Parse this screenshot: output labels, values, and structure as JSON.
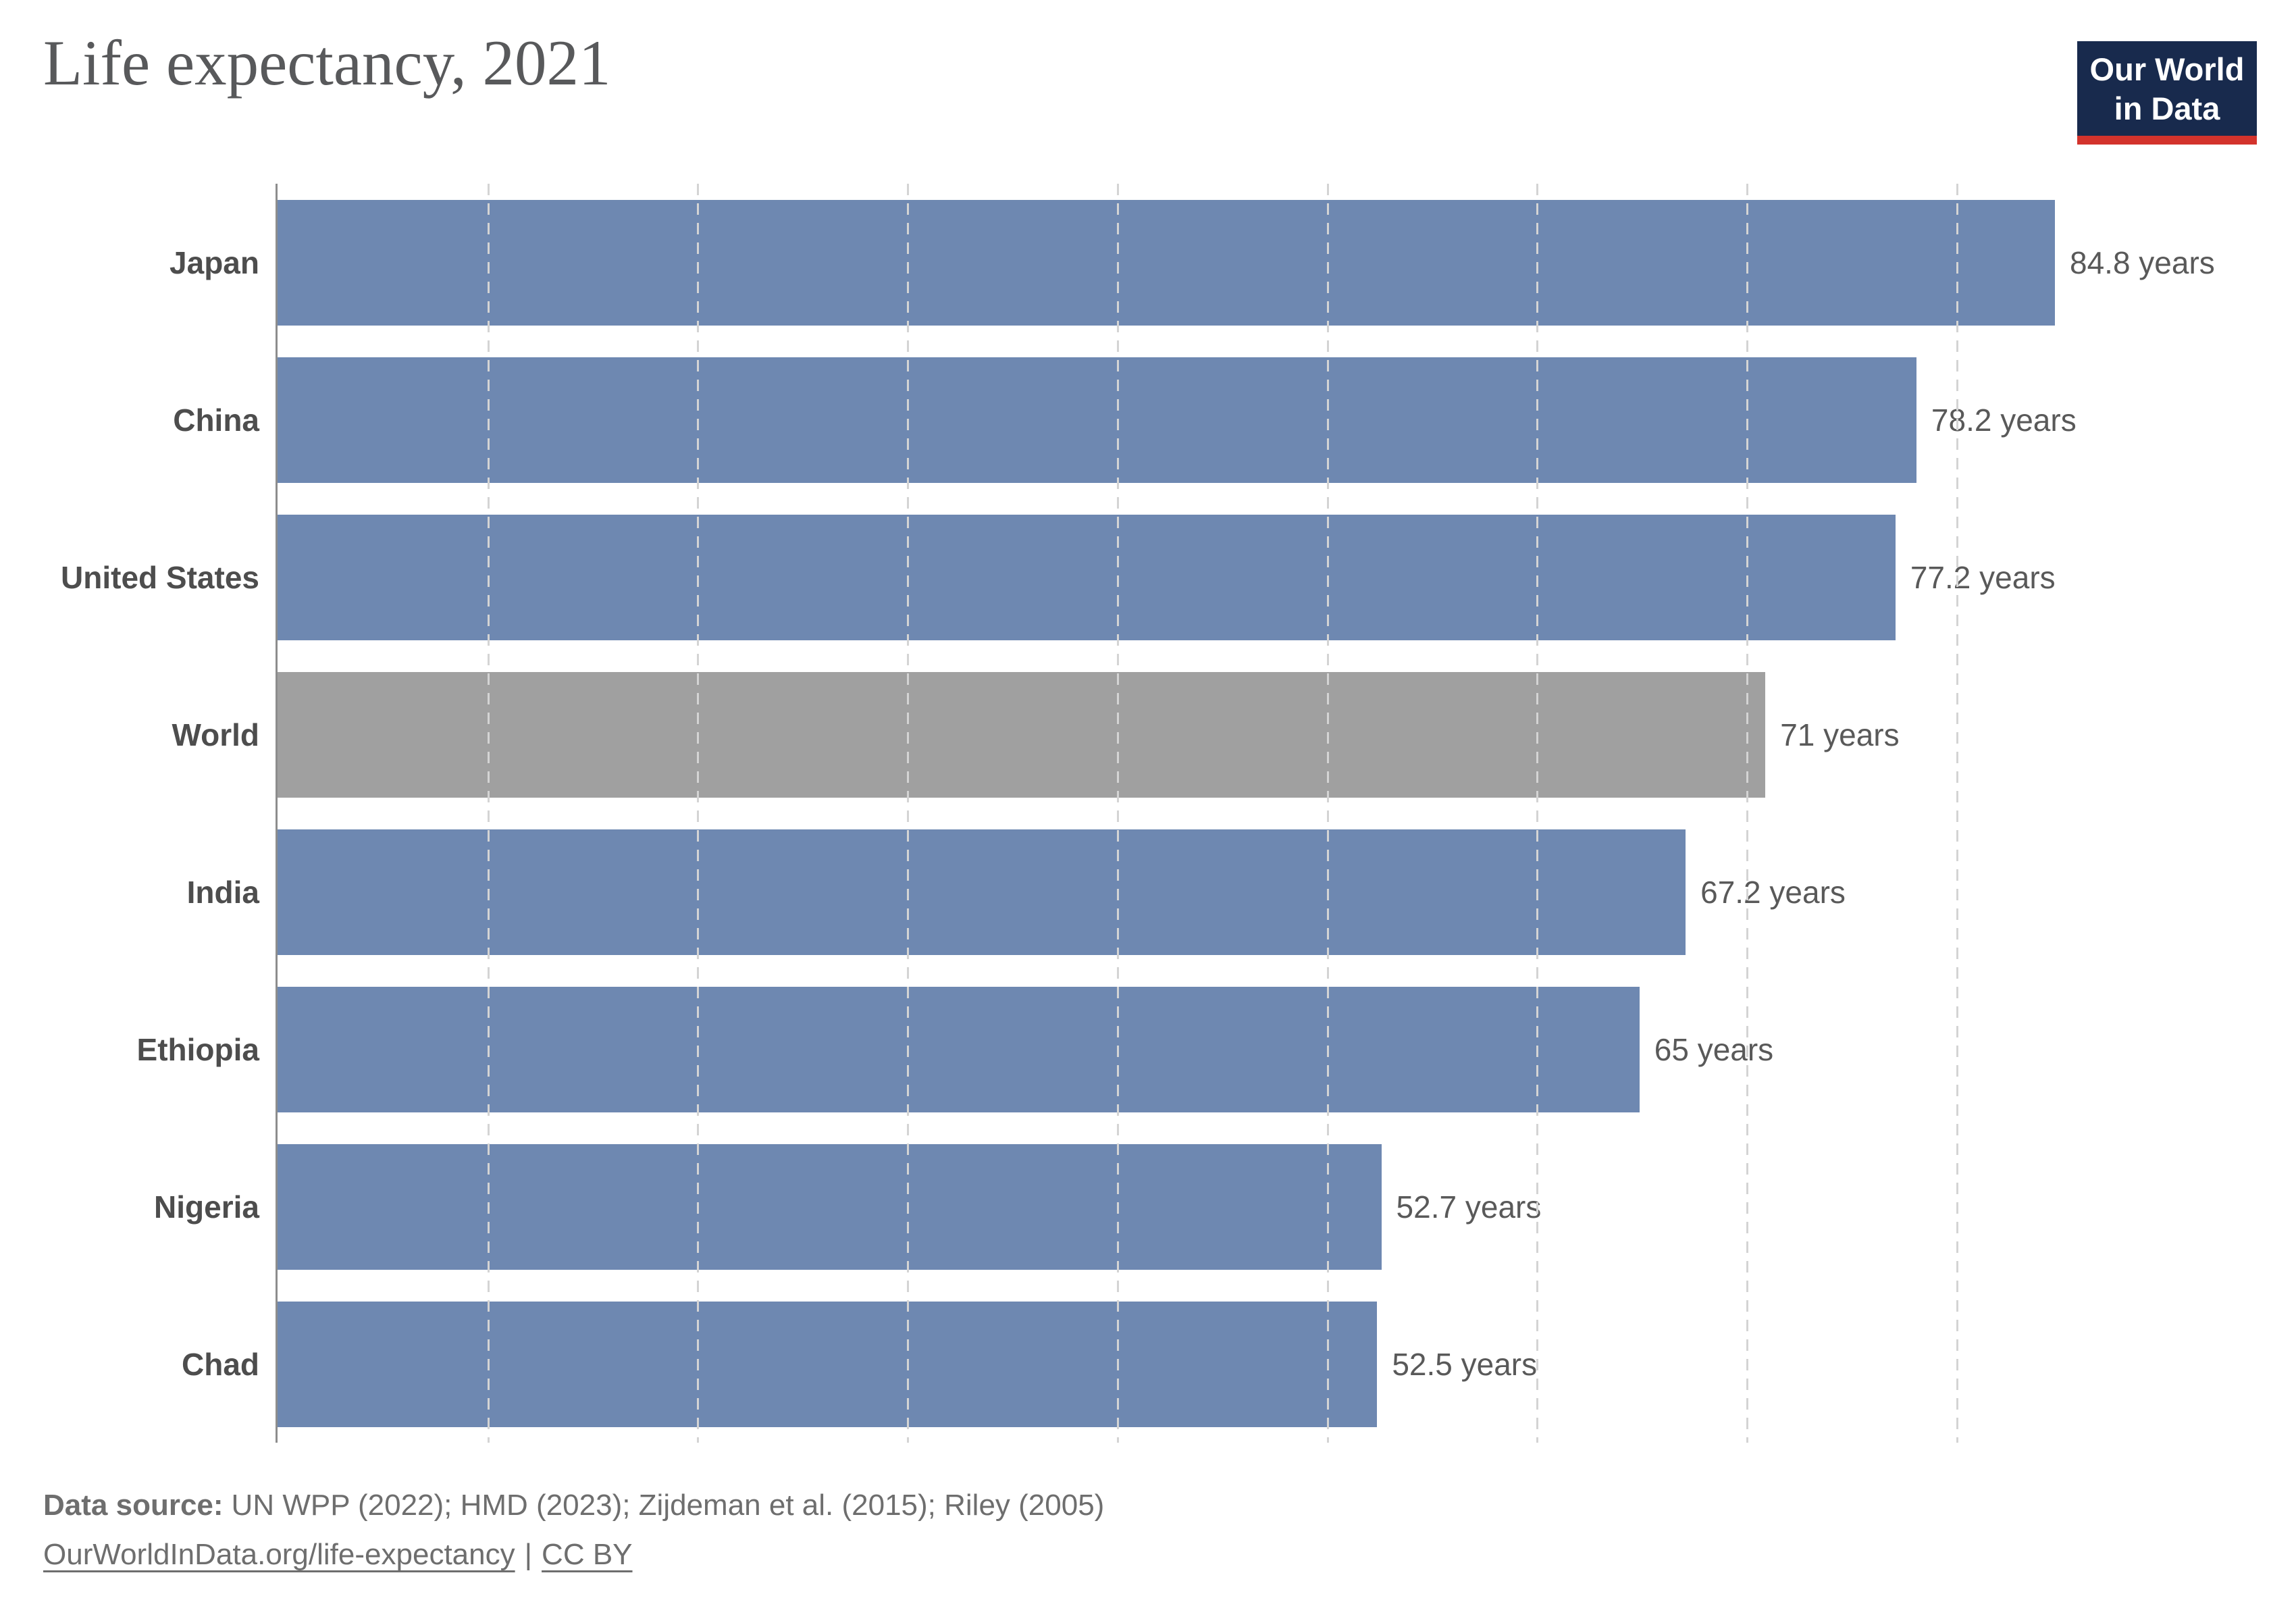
{
  "header": {
    "title": "Life expectancy, 2021"
  },
  "logo": {
    "line1": "Our World",
    "line2": "in Data",
    "background": "#182a4d",
    "accent_bar": "#d3332c"
  },
  "chart_data": {
    "type": "bar",
    "orientation": "horizontal",
    "title": "Life expectancy, 2021",
    "categories": [
      "Japan",
      "China",
      "United States",
      "World",
      "India",
      "Ethiopia",
      "Nigeria",
      "Chad"
    ],
    "values": [
      84.8,
      78.2,
      77.2,
      71,
      67.2,
      65,
      52.7,
      52.5
    ],
    "value_labels": [
      "84.8 years",
      "78.2 years",
      "77.2 years",
      "71 years",
      "67.2 years",
      "65 years",
      "52.7 years",
      "52.5 years"
    ],
    "unit": "years",
    "xlim": [
      0,
      84.8
    ],
    "gridline_step": 10,
    "grid": true,
    "legend": "none",
    "bar_colors": [
      "#6e88b1",
      "#6e88b1",
      "#6e88b1",
      "#a0a0a0",
      "#6e88b1",
      "#6e88b1",
      "#6e88b1",
      "#6e88b1"
    ]
  },
  "footer": {
    "source_label": "Data source:",
    "source_text": "UN WPP (2022); HMD (2023); Zijdeman et al. (2015); Riley (2005)",
    "link_url": "OurWorldInData.org/life-expectancy",
    "divider": "|",
    "license": "CC BY"
  },
  "colors": {
    "bar_blue": "#6e88b1",
    "bar_gray": "#a0a0a0",
    "title_text": "#58595b",
    "category_text": "#4d4d4d",
    "value_text": "#595959",
    "footer_text": "#6e6e6e",
    "gridline": "#d4d4d4",
    "axis_line": "#8d8d8d",
    "logo_background": "#182a4d",
    "logo_accent": "#d3332c"
  }
}
